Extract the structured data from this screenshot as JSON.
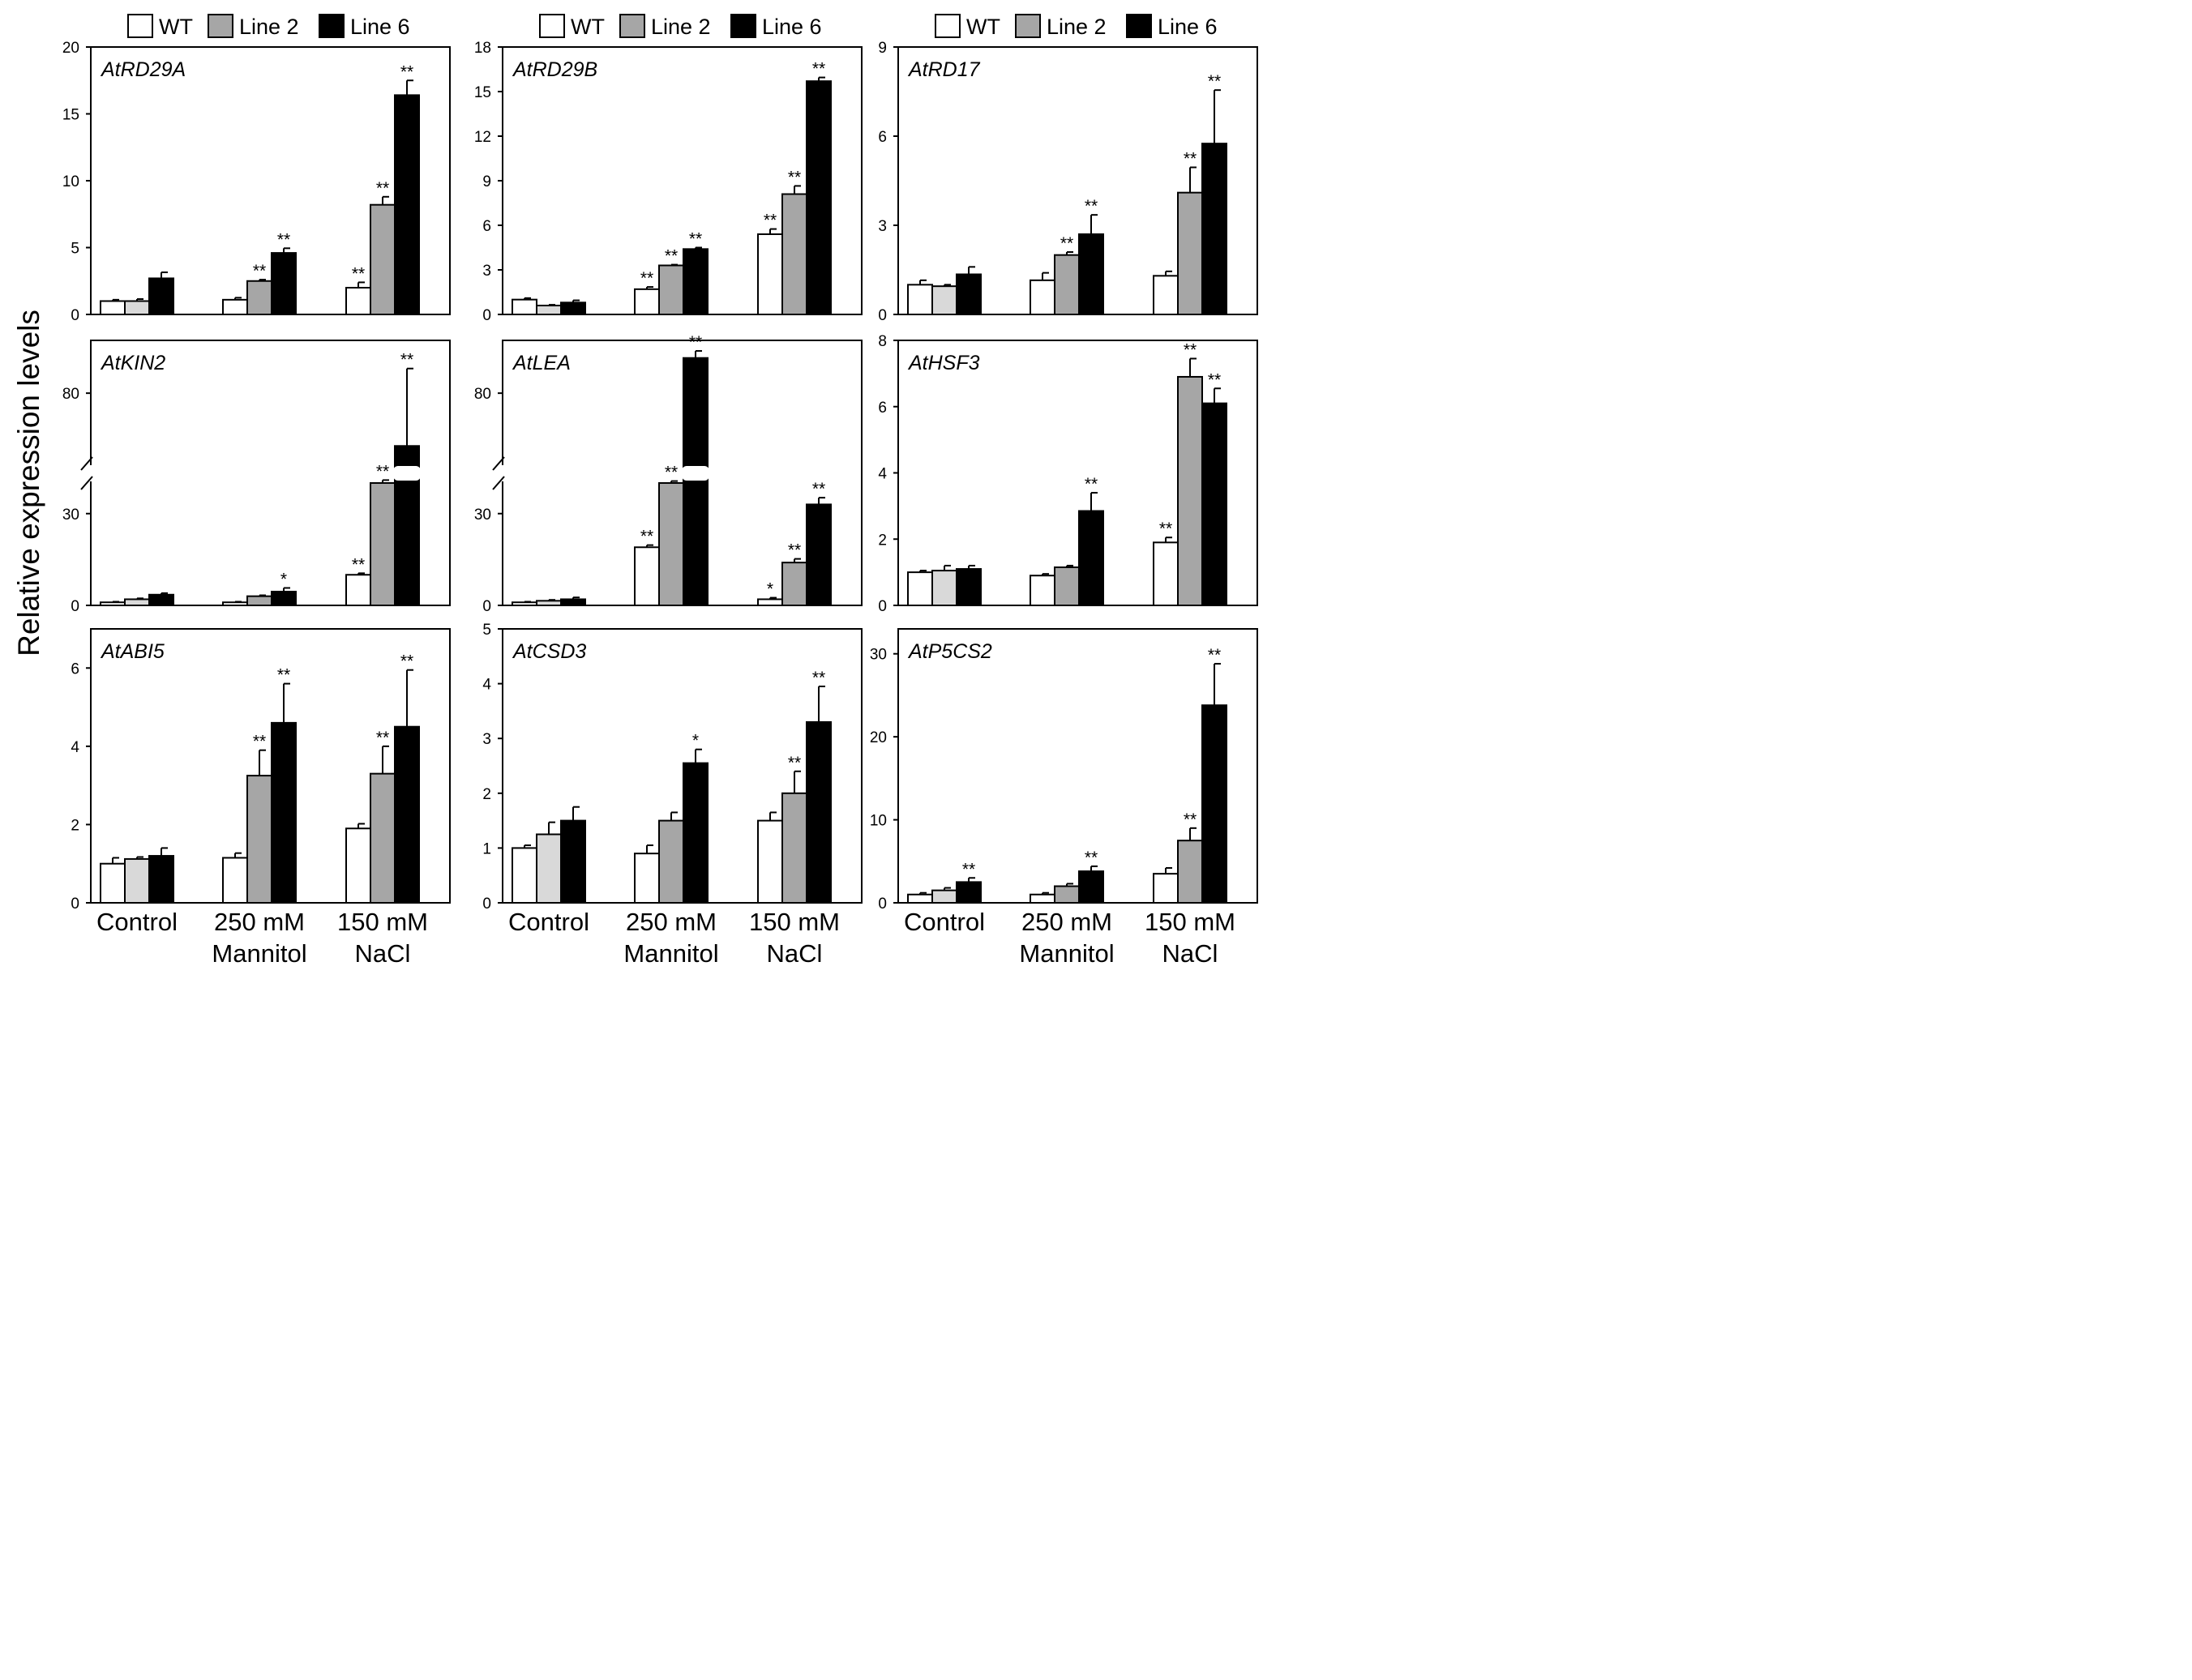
{
  "figure": {
    "ylabel": "Relative expression levels",
    "legend": [
      {
        "label": "WT",
        "color": "#ffffff"
      },
      {
        "label": "Line 2",
        "color": "#a6a6a6"
      },
      {
        "label": "Line 6",
        "color": "#000000"
      }
    ],
    "categories": [
      {
        "line1": "Control",
        "line2": ""
      },
      {
        "line1": "250 mM",
        "line2": "Mannitol"
      },
      {
        "line1": "150 mM",
        "line2": "NaCl"
      }
    ],
    "colors": {
      "WT": "#ffffff",
      "Line2": "#a6a6a6",
      "Line2_control": "#d9d9d9",
      "Line6": "#000000",
      "axis": "#000000"
    }
  },
  "chart_data": [
    {
      "type": "bar",
      "title": "AtRD29A",
      "ylim": [
        0,
        20
      ],
      "yticks": [
        0,
        5,
        10,
        15,
        20
      ],
      "categories": [
        "Control",
        "250 mM Mannitol",
        "150 mM NaCl"
      ],
      "series": [
        {
          "name": "WT",
          "values": [
            1.0,
            1.1,
            2.0
          ],
          "errors": [
            0.1,
            0.15,
            0.4
          ],
          "stars": [
            "",
            "",
            "**"
          ]
        },
        {
          "name": "Line 2",
          "values": [
            1.0,
            2.5,
            8.2
          ],
          "errors": [
            0.15,
            0.1,
            0.6
          ],
          "stars": [
            "",
            "**",
            "**"
          ]
        },
        {
          "name": "Line 6",
          "values": [
            2.7,
            4.6,
            16.4
          ],
          "errors": [
            0.45,
            0.35,
            1.1
          ],
          "stars": [
            "",
            "**",
            "**"
          ]
        }
      ]
    },
    {
      "type": "bar",
      "title": "AtRD29B",
      "ylim": [
        0,
        18
      ],
      "yticks": [
        0,
        3,
        6,
        9,
        12,
        15,
        18
      ],
      "categories": [
        "Control",
        "250 mM Mannitol",
        "150 mM NaCl"
      ],
      "series": [
        {
          "name": "WT",
          "values": [
            1.0,
            1.7,
            5.4
          ],
          "errors": [
            0.1,
            0.15,
            0.35
          ],
          "stars": [
            "",
            "**",
            "**"
          ]
        },
        {
          "name": "Line 2",
          "values": [
            0.6,
            3.3,
            8.1
          ],
          "errors": [
            0.05,
            0.05,
            0.55
          ],
          "stars": [
            "",
            "**",
            "**"
          ]
        },
        {
          "name": "Line 6",
          "values": [
            0.8,
            4.4,
            15.7
          ],
          "errors": [
            0.15,
            0.1,
            0.25
          ],
          "stars": [
            "",
            "**",
            "**"
          ]
        }
      ]
    },
    {
      "type": "bar",
      "title": "AtRD17",
      "ylim": [
        0,
        9
      ],
      "yticks": [
        0,
        3,
        6,
        9
      ],
      "categories": [
        "Control",
        "250 mM Mannitol",
        "150 mM NaCl"
      ],
      "series": [
        {
          "name": "WT",
          "values": [
            1.0,
            1.15,
            1.3
          ],
          "errors": [
            0.15,
            0.25,
            0.15
          ],
          "stars": [
            "",
            "",
            ""
          ]
        },
        {
          "name": "Line 2",
          "values": [
            0.95,
            2.0,
            4.1
          ],
          "errors": [
            0.05,
            0.1,
            0.85
          ],
          "stars": [
            "",
            "**",
            "**"
          ]
        },
        {
          "name": "Line 6",
          "values": [
            1.35,
            2.7,
            5.75
          ],
          "errors": [
            0.25,
            0.65,
            1.8
          ],
          "stars": [
            "",
            "**",
            "**"
          ]
        }
      ]
    },
    {
      "type": "bar",
      "title": "AtKIN2",
      "ylim": [
        0,
        80
      ],
      "yticks": [
        0,
        30,
        80
      ],
      "axis_break": true,
      "categories": [
        "Control",
        "250 mM Mannitol",
        "150 mM NaCl"
      ],
      "series": [
        {
          "name": "WT",
          "values": [
            1.0,
            1.0,
            10.0
          ],
          "errors": [
            0.2,
            0.2,
            0.5
          ],
          "stars": [
            "",
            "",
            "**"
          ]
        },
        {
          "name": "Line 2",
          "values": [
            2.0,
            3.0,
            40.0
          ],
          "errors": [
            0.3,
            0.3,
            3.0
          ],
          "stars": [
            "",
            "",
            "**"
          ]
        },
        {
          "name": "Line 6",
          "values": [
            3.5,
            4.5,
            65.0
          ],
          "errors": [
            0.5,
            1.2,
            22.0
          ],
          "stars": [
            "",
            "*",
            "**"
          ]
        }
      ]
    },
    {
      "type": "bar",
      "title": "AtLEA",
      "ylim": [
        0,
        80
      ],
      "yticks": [
        0,
        30,
        80
      ],
      "axis_break": true,
      "categories": [
        "Control",
        "250 mM Mannitol",
        "150 mM NaCl"
      ],
      "series": [
        {
          "name": "WT",
          "values": [
            1.0,
            19.0,
            2.0
          ],
          "errors": [
            0.2,
            0.7,
            0.5
          ],
          "stars": [
            "",
            "**",
            "*"
          ]
        },
        {
          "name": "Line 2",
          "values": [
            1.5,
            40.0,
            14.0
          ],
          "errors": [
            0.3,
            2.0,
            1.2
          ],
          "stars": [
            "",
            "**",
            "**"
          ]
        },
        {
          "name": "Line 6",
          "values": [
            2.0,
            90.0,
            33.0
          ],
          "errors": [
            0.6,
            2.0,
            2.2
          ],
          "stars": [
            "",
            "**",
            "**"
          ]
        }
      ]
    },
    {
      "type": "bar",
      "title": "AtHSF3",
      "ylim": [
        0,
        8
      ],
      "yticks": [
        0,
        2,
        4,
        6,
        8
      ],
      "categories": [
        "Control",
        "250 mM Mannitol",
        "150 mM NaCl"
      ],
      "series": [
        {
          "name": "WT",
          "values": [
            1.0,
            0.9,
            1.9
          ],
          "errors": [
            0.05,
            0.05,
            0.15
          ],
          "stars": [
            "",
            "",
            "**"
          ]
        },
        {
          "name": "Line 2",
          "values": [
            1.05,
            1.15,
            6.9
          ],
          "errors": [
            0.15,
            0.05,
            0.55
          ],
          "stars": [
            "",
            "",
            "**"
          ]
        },
        {
          "name": "Line 6",
          "values": [
            1.1,
            2.85,
            6.1
          ],
          "errors": [
            0.1,
            0.55,
            0.45
          ],
          "stars": [
            "",
            "**",
            "**"
          ]
        }
      ]
    },
    {
      "type": "bar",
      "title": "AtABI5",
      "ylim": [
        0,
        7
      ],
      "yticks": [
        0,
        2,
        4,
        6
      ],
      "categories": [
        "Control",
        "250 mM Mannitol",
        "150 mM NaCl"
      ],
      "series": [
        {
          "name": "WT",
          "values": [
            1.0,
            1.15,
            1.9
          ],
          "errors": [
            0.15,
            0.12,
            0.12
          ],
          "stars": [
            "",
            "",
            ""
          ]
        },
        {
          "name": "Line 2",
          "values": [
            1.12,
            3.25,
            3.3
          ],
          "errors": [
            0.05,
            0.65,
            0.7
          ],
          "stars": [
            "",
            "**",
            "**"
          ]
        },
        {
          "name": "Line 6",
          "values": [
            1.2,
            4.6,
            4.5
          ],
          "errors": [
            0.2,
            1.0,
            1.45
          ],
          "stars": [
            "",
            "**",
            "**"
          ]
        }
      ]
    },
    {
      "type": "bar",
      "title": "AtCSD3",
      "ylim": [
        0,
        5
      ],
      "yticks": [
        0,
        1,
        2,
        3,
        4,
        5
      ],
      "categories": [
        "Control",
        "250 mM Mannitol",
        "150 mM NaCl"
      ],
      "series": [
        {
          "name": "WT",
          "values": [
            1.0,
            0.9,
            1.5
          ],
          "errors": [
            0.05,
            0.15,
            0.15
          ],
          "stars": [
            "",
            "",
            ""
          ]
        },
        {
          "name": "Line 2",
          "values": [
            1.25,
            1.5,
            2.0
          ],
          "errors": [
            0.22,
            0.15,
            0.4
          ],
          "stars": [
            "",
            "",
            "**"
          ]
        },
        {
          "name": "Line 6",
          "values": [
            1.5,
            2.55,
            3.3
          ],
          "errors": [
            0.25,
            0.25,
            0.65
          ],
          "stars": [
            "",
            "*",
            "**"
          ]
        }
      ]
    },
    {
      "type": "bar",
      "title": "AtP5CS2",
      "ylim": [
        0,
        33
      ],
      "yticks": [
        0,
        10,
        20,
        30
      ],
      "categories": [
        "Control",
        "250 mM Mannitol",
        "150 mM NaCl"
      ],
      "series": [
        {
          "name": "WT",
          "values": [
            1.0,
            1.0,
            3.5
          ],
          "errors": [
            0.2,
            0.2,
            0.7
          ],
          "stars": [
            "",
            "",
            ""
          ]
        },
        {
          "name": "Line 2",
          "values": [
            1.5,
            2.0,
            7.5
          ],
          "errors": [
            0.3,
            0.3,
            1.5
          ],
          "stars": [
            "",
            "",
            "**"
          ]
        },
        {
          "name": "Line 6",
          "values": [
            2.5,
            3.8,
            23.8
          ],
          "errors": [
            0.5,
            0.6,
            5.0
          ],
          "stars": [
            "**",
            "**",
            "**"
          ]
        }
      ]
    }
  ]
}
